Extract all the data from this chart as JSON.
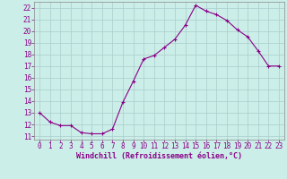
{
  "x": [
    0,
    1,
    2,
    3,
    4,
    5,
    6,
    7,
    8,
    9,
    10,
    11,
    12,
    13,
    14,
    15,
    16,
    17,
    18,
    19,
    20,
    21,
    22,
    23
  ],
  "y": [
    13.0,
    12.2,
    11.9,
    11.9,
    11.3,
    11.2,
    11.2,
    11.6,
    13.9,
    15.7,
    17.6,
    17.9,
    18.6,
    19.3,
    20.5,
    22.2,
    21.7,
    21.4,
    20.9,
    20.1,
    19.5,
    18.3,
    17.0,
    17.0
  ],
  "line_color": "#880088",
  "marker": "+",
  "marker_size": 3,
  "bg_color": "#cceee8",
  "grid_color": "#aacccc",
  "xlabel": "Windchill (Refroidissement éolien,°C)",
  "xlabel_color": "#880088",
  "tick_color": "#880088",
  "ylim": [
    10.7,
    22.5
  ],
  "xlim": [
    -0.5,
    23.5
  ],
  "yticks": [
    11,
    12,
    13,
    14,
    15,
    16,
    17,
    18,
    19,
    20,
    21,
    22
  ],
  "xticks": [
    0,
    1,
    2,
    3,
    4,
    5,
    6,
    7,
    8,
    9,
    10,
    11,
    12,
    13,
    14,
    15,
    16,
    17,
    18,
    19,
    20,
    21,
    22,
    23
  ],
  "tick_fontsize": 5.5,
  "xlabel_fontsize": 6.0
}
